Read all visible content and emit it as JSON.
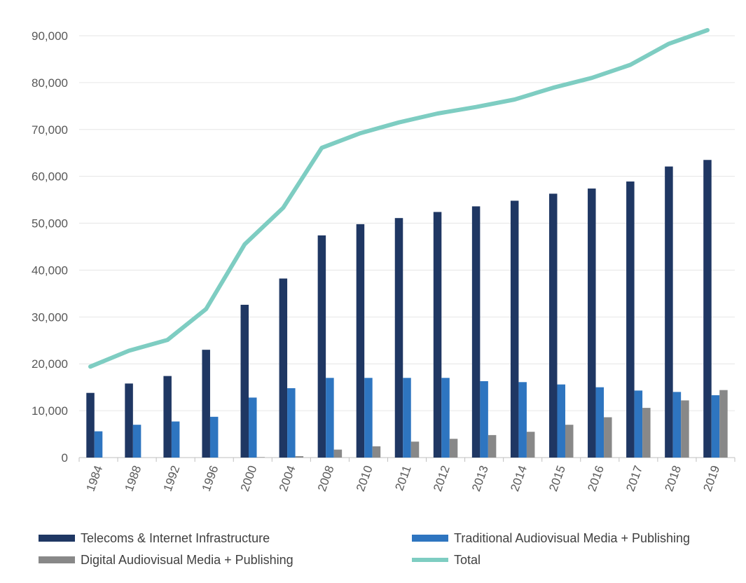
{
  "chart_data": {
    "type": "bar",
    "categories": [
      "1984",
      "1988",
      "1992",
      "1996",
      "2000",
      "2004",
      "2008",
      "2010",
      "2011",
      "2012",
      "2013",
      "2014",
      "2015",
      "2016",
      "2017",
      "2018",
      "2019"
    ],
    "series": [
      {
        "name": "Telecoms & Internet Infrastructure",
        "kind": "bar",
        "color": "#1f3763",
        "values": [
          13800,
          15800,
          17400,
          23000,
          32600,
          38200,
          47400,
          49800,
          51100,
          52400,
          53600,
          54800,
          56300,
          57400,
          58900,
          62100,
          63500
        ]
      },
      {
        "name": "Traditional Audiovisual Media + Publishing",
        "kind": "bar",
        "color": "#2e75c0",
        "values": [
          5600,
          7000,
          7700,
          8700,
          12800,
          14800,
          17000,
          17000,
          17000,
          17000,
          16300,
          16100,
          15600,
          15000,
          14300,
          14000,
          13300
        ]
      },
      {
        "name": "Digital Audiovisual Media + Publishing",
        "kind": "bar",
        "color": "#888888",
        "values": [
          0,
          0,
          0,
          0,
          100,
          300,
          1700,
          2400,
          3400,
          4000,
          4800,
          5500,
          7000,
          8600,
          10600,
          12200,
          14400
        ]
      },
      {
        "name": "Total",
        "kind": "line",
        "color": "#7ecdc2",
        "values": [
          19400,
          22800,
          25100,
          31700,
          45500,
          53300,
          66100,
          69200,
          71500,
          73400,
          74800,
          76400,
          78900,
          81000,
          83800,
          88300,
          91200
        ]
      }
    ],
    "y_ticks": [
      "0",
      "10,000",
      "20,000",
      "30,000",
      "40,000",
      "50,000",
      "60,000",
      "70,000",
      "80,000",
      "90,000"
    ],
    "ylim": [
      0,
      90000
    ],
    "grid": true,
    "legend_position": "bottom",
    "title": "",
    "xlabel": "",
    "ylabel": ""
  }
}
